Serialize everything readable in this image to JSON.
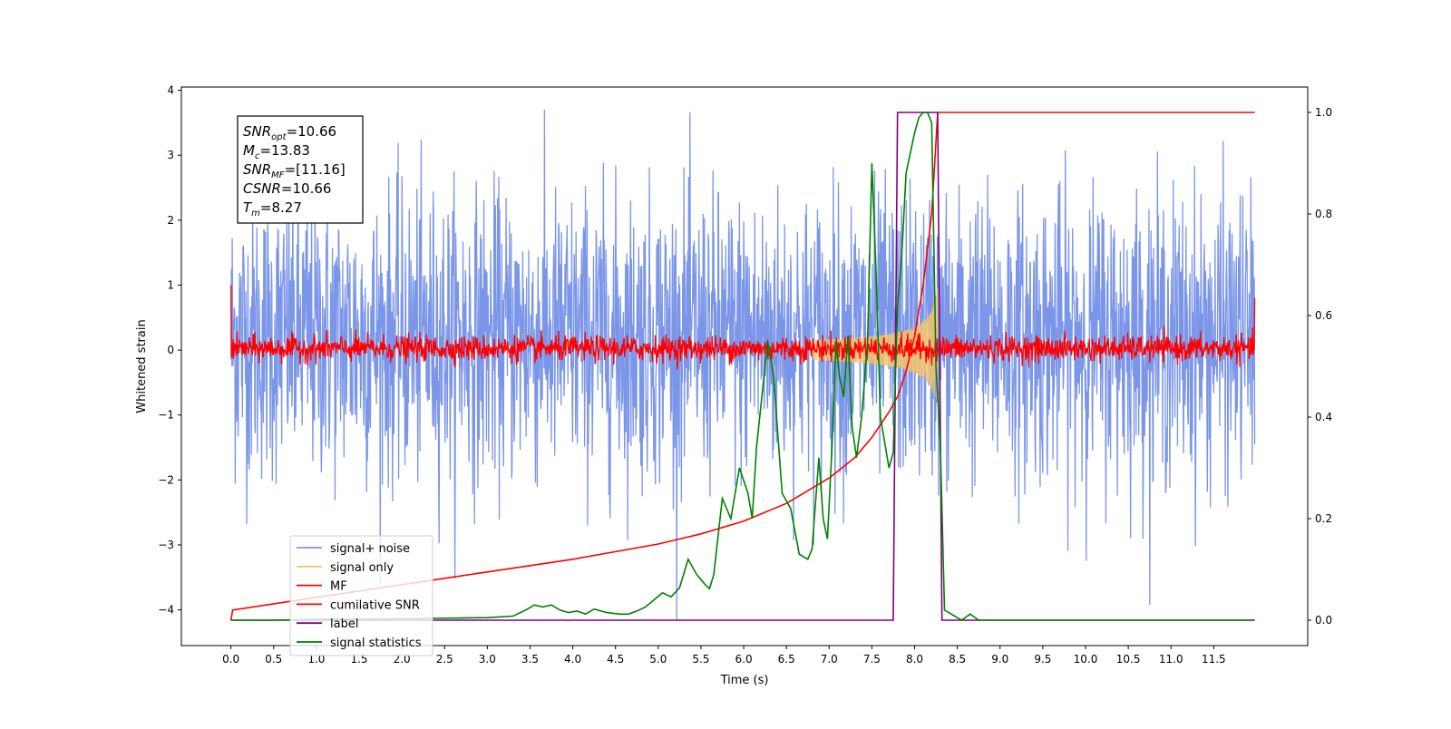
{
  "chart_data": {
    "type": "line",
    "title": "",
    "xlabel": "Time (s)",
    "ylabel": "Whitened strain",
    "xlim": [
      -0.58,
      12.6
    ],
    "ylim": [
      -4.55,
      4.05
    ],
    "y2lim": [
      -0.05,
      1.05
    ],
    "grid": false,
    "legend_position": "lower-left",
    "x_ticks": [
      "0.0",
      "0.5",
      "1.0",
      "1.5",
      "2.0",
      "2.5",
      "3.0",
      "3.5",
      "4.0",
      "4.5",
      "5.0",
      "5.5",
      "6.0",
      "6.5",
      "7.0",
      "7.5",
      "8.0",
      "8.5",
      "9.0",
      "9.5",
      "10.0",
      "10.5",
      "11.0",
      "11.5"
    ],
    "y_ticks": [
      "4",
      "3",
      "2",
      "1",
      "0",
      "−1",
      "−2",
      "−3",
      "−4"
    ],
    "y2_ticks": [
      "1.0",
      "0.8",
      "0.6",
      "0.4",
      "0.2",
      "0.0"
    ],
    "annotation": [
      {
        "sym": "SNR",
        "sub": "opt",
        "value": "=10.66"
      },
      {
        "sym": "M",
        "sub": "c",
        "value": "=13.83"
      },
      {
        "sym": "SNR",
        "sub": "MF",
        "value": "=[11.16]"
      },
      {
        "sym": "CSNR",
        "sub": "",
        "value": "=10.66"
      },
      {
        "sym": "T",
        "sub": "m",
        "value": "=8.27"
      }
    ],
    "series": [
      {
        "name": "signal+ noise",
        "axis": "left",
        "color": "#7b96e8",
        "kind": "noise_band",
        "x_range": [
          0.0,
          11.98
        ],
        "typical_range": [
          -1.5,
          1.9
        ],
        "extreme_range": [
          -4.15,
          3.7
        ]
      },
      {
        "name": "signal only",
        "axis": "left",
        "color": "#f5c46b",
        "kind": "chirp",
        "x_range": [
          6.8,
          8.27
        ],
        "peak_amplitude": 1.0
      },
      {
        "name": "MF",
        "axis": "left",
        "color": "#ff0000",
        "kind": "noise_band",
        "x_range": [
          0.0,
          11.98
        ],
        "typical_range": [
          -0.15,
          0.2
        ],
        "start_value": 1.0,
        "end_value": 0.8
      },
      {
        "name": "cumilative SNR",
        "axis": "right",
        "color": "#ff0000",
        "kind": "line",
        "x": [
          0.0,
          0.02,
          1,
          2,
          3,
          4,
          5,
          5.5,
          6,
          6.5,
          7,
          7.3,
          7.5,
          7.7,
          7.8,
          7.9,
          8.0,
          8.1,
          8.2,
          8.27,
          11.98
        ],
        "y": [
          0.0,
          0.02,
          0.045,
          0.07,
          0.095,
          0.12,
          0.15,
          0.17,
          0.195,
          0.23,
          0.28,
          0.32,
          0.36,
          0.41,
          0.44,
          0.49,
          0.56,
          0.66,
          0.8,
          1.0,
          1.0
        ]
      },
      {
        "name": "label",
        "axis": "right",
        "color": "#800080",
        "kind": "step",
        "x": [
          0.0,
          7.75,
          7.8,
          8.27,
          8.32,
          11.98
        ],
        "y": [
          0.0,
          0.0,
          1.0,
          1.0,
          0.0,
          0.0
        ]
      },
      {
        "name": "signal statistics",
        "axis": "right",
        "color": "#008000",
        "kind": "line",
        "x": [
          0.0,
          0.5,
          1.0,
          1.5,
          2.0,
          2.5,
          3.0,
          3.3,
          3.45,
          3.55,
          3.65,
          3.75,
          3.85,
          3.95,
          4.05,
          4.15,
          4.25,
          4.4,
          4.55,
          4.65,
          4.75,
          4.85,
          4.95,
          5.05,
          5.15,
          5.25,
          5.35,
          5.45,
          5.55,
          5.6,
          5.65,
          5.75,
          5.85,
          5.95,
          6.05,
          6.1,
          6.15,
          6.2,
          6.28,
          6.35,
          6.45,
          6.55,
          6.65,
          6.75,
          6.8,
          6.88,
          6.93,
          6.98,
          7.03,
          7.08,
          7.12,
          7.17,
          7.22,
          7.27,
          7.32,
          7.38,
          7.45,
          7.5,
          7.55,
          7.6,
          7.65,
          7.7,
          7.75,
          7.8,
          7.85,
          7.9,
          7.95,
          8.0,
          8.05,
          8.1,
          8.15,
          8.2,
          8.25,
          8.3,
          8.35,
          8.45,
          8.55,
          8.65,
          8.75,
          9.0,
          10.0,
          11.0,
          11.98
        ],
        "y": [
          0.0,
          0.0,
          0.002,
          0.002,
          0.003,
          0.004,
          0.005,
          0.008,
          0.02,
          0.03,
          0.026,
          0.03,
          0.02,
          0.015,
          0.018,
          0.012,
          0.022,
          0.015,
          0.012,
          0.012,
          0.018,
          0.026,
          0.04,
          0.054,
          0.046,
          0.064,
          0.12,
          0.09,
          0.07,
          0.062,
          0.09,
          0.24,
          0.2,
          0.3,
          0.25,
          0.2,
          0.34,
          0.42,
          0.55,
          0.48,
          0.25,
          0.22,
          0.13,
          0.12,
          0.14,
          0.32,
          0.2,
          0.16,
          0.33,
          0.55,
          0.48,
          0.44,
          0.56,
          0.38,
          0.32,
          0.4,
          0.55,
          0.9,
          0.68,
          0.4,
          0.35,
          0.3,
          0.33,
          0.62,
          0.72,
          0.88,
          0.92,
          0.96,
          0.99,
          1.0,
          1.0,
          0.98,
          0.5,
          0.35,
          0.02,
          0.01,
          0.0,
          0.012,
          0.0,
          0.0,
          0.0,
          0.0,
          0.0
        ]
      }
    ]
  }
}
